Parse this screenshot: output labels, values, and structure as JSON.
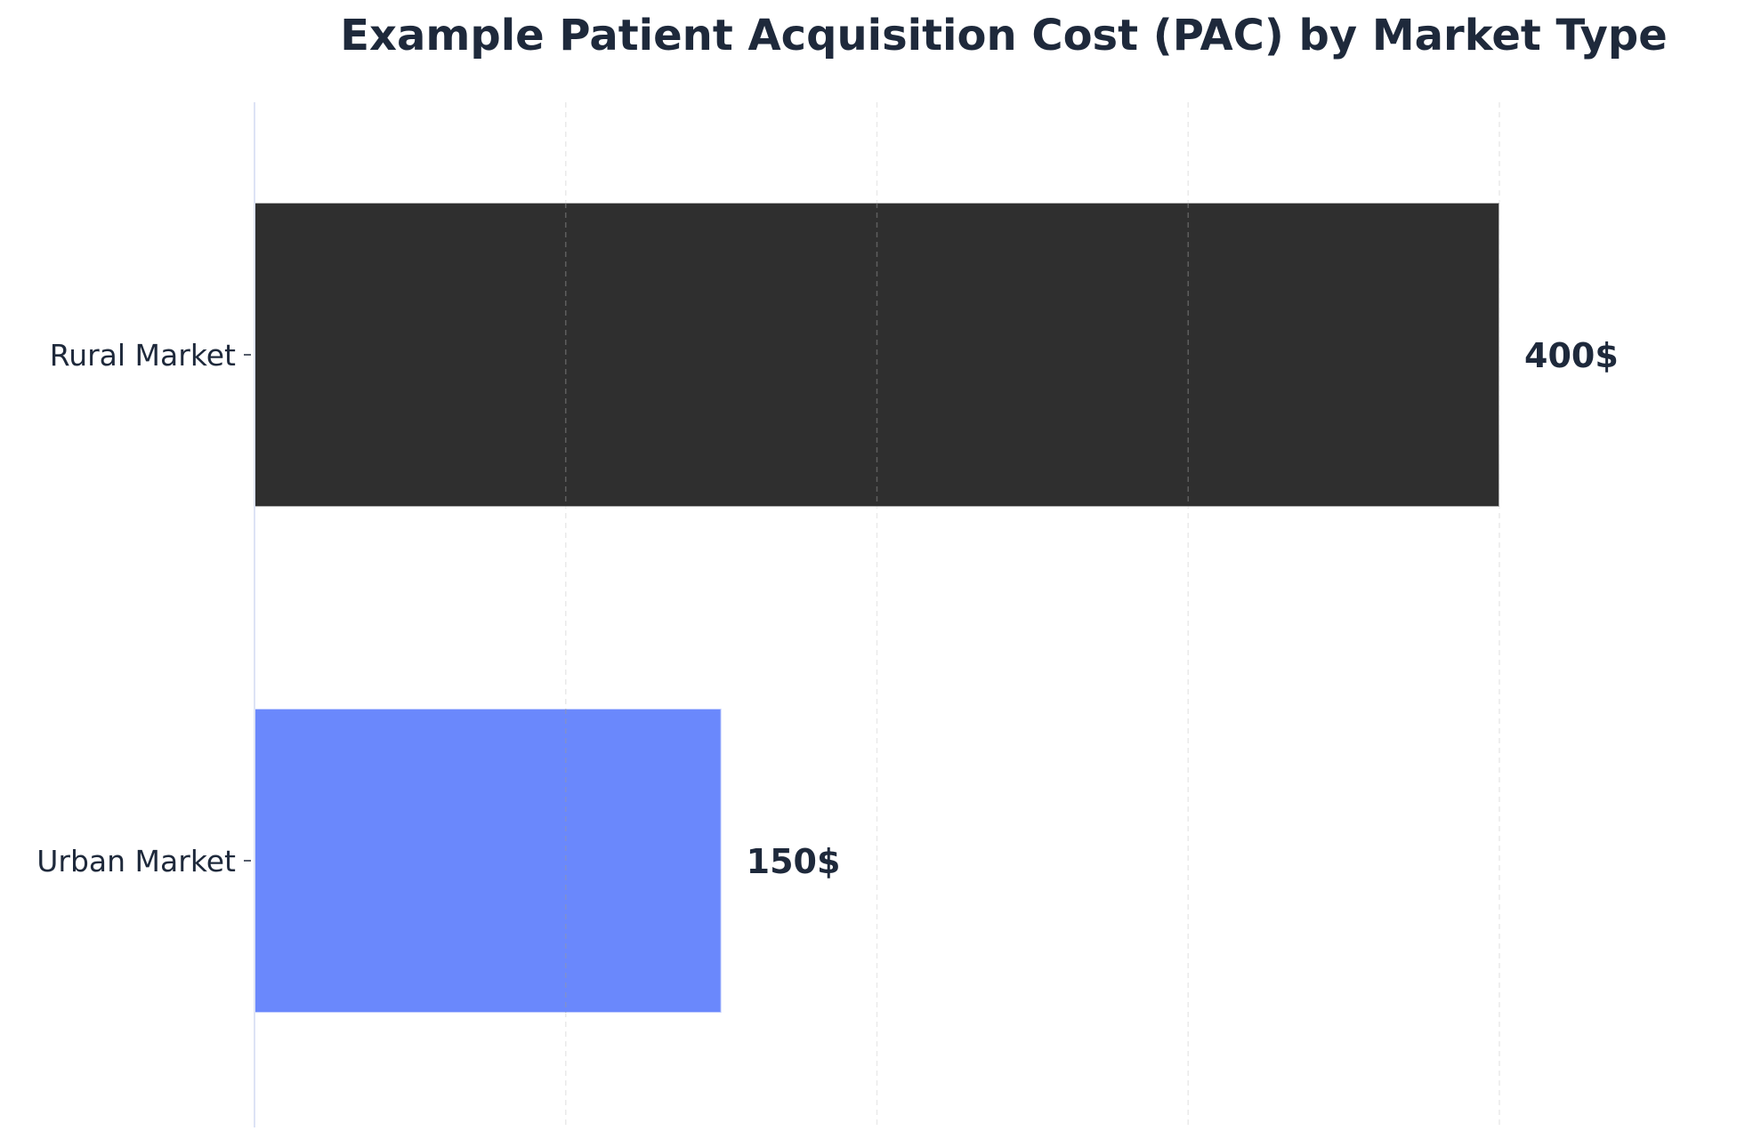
{
  "chart_data": {
    "type": "bar",
    "orientation": "horizontal",
    "title": "Example Patient Acquisition Cost (PAC) by Market Type",
    "xlabel": "",
    "ylabel": "",
    "categories": [
      "Rural Market",
      "Urban Market"
    ],
    "values": [
      400,
      150
    ],
    "data_labels": [
      "400$",
      "150$"
    ],
    "xlim": [
      0,
      440
    ],
    "x_gridlines": [
      0,
      100,
      200,
      300,
      400
    ],
    "x_tick_labels_visible": false,
    "grid": true,
    "bar_colors": [
      "#2f2f2f",
      "#6a88fc"
    ]
  },
  "colors": {
    "text": "#1e293b",
    "axis": "#dde3f5",
    "grid": "#8a8a8a"
  }
}
